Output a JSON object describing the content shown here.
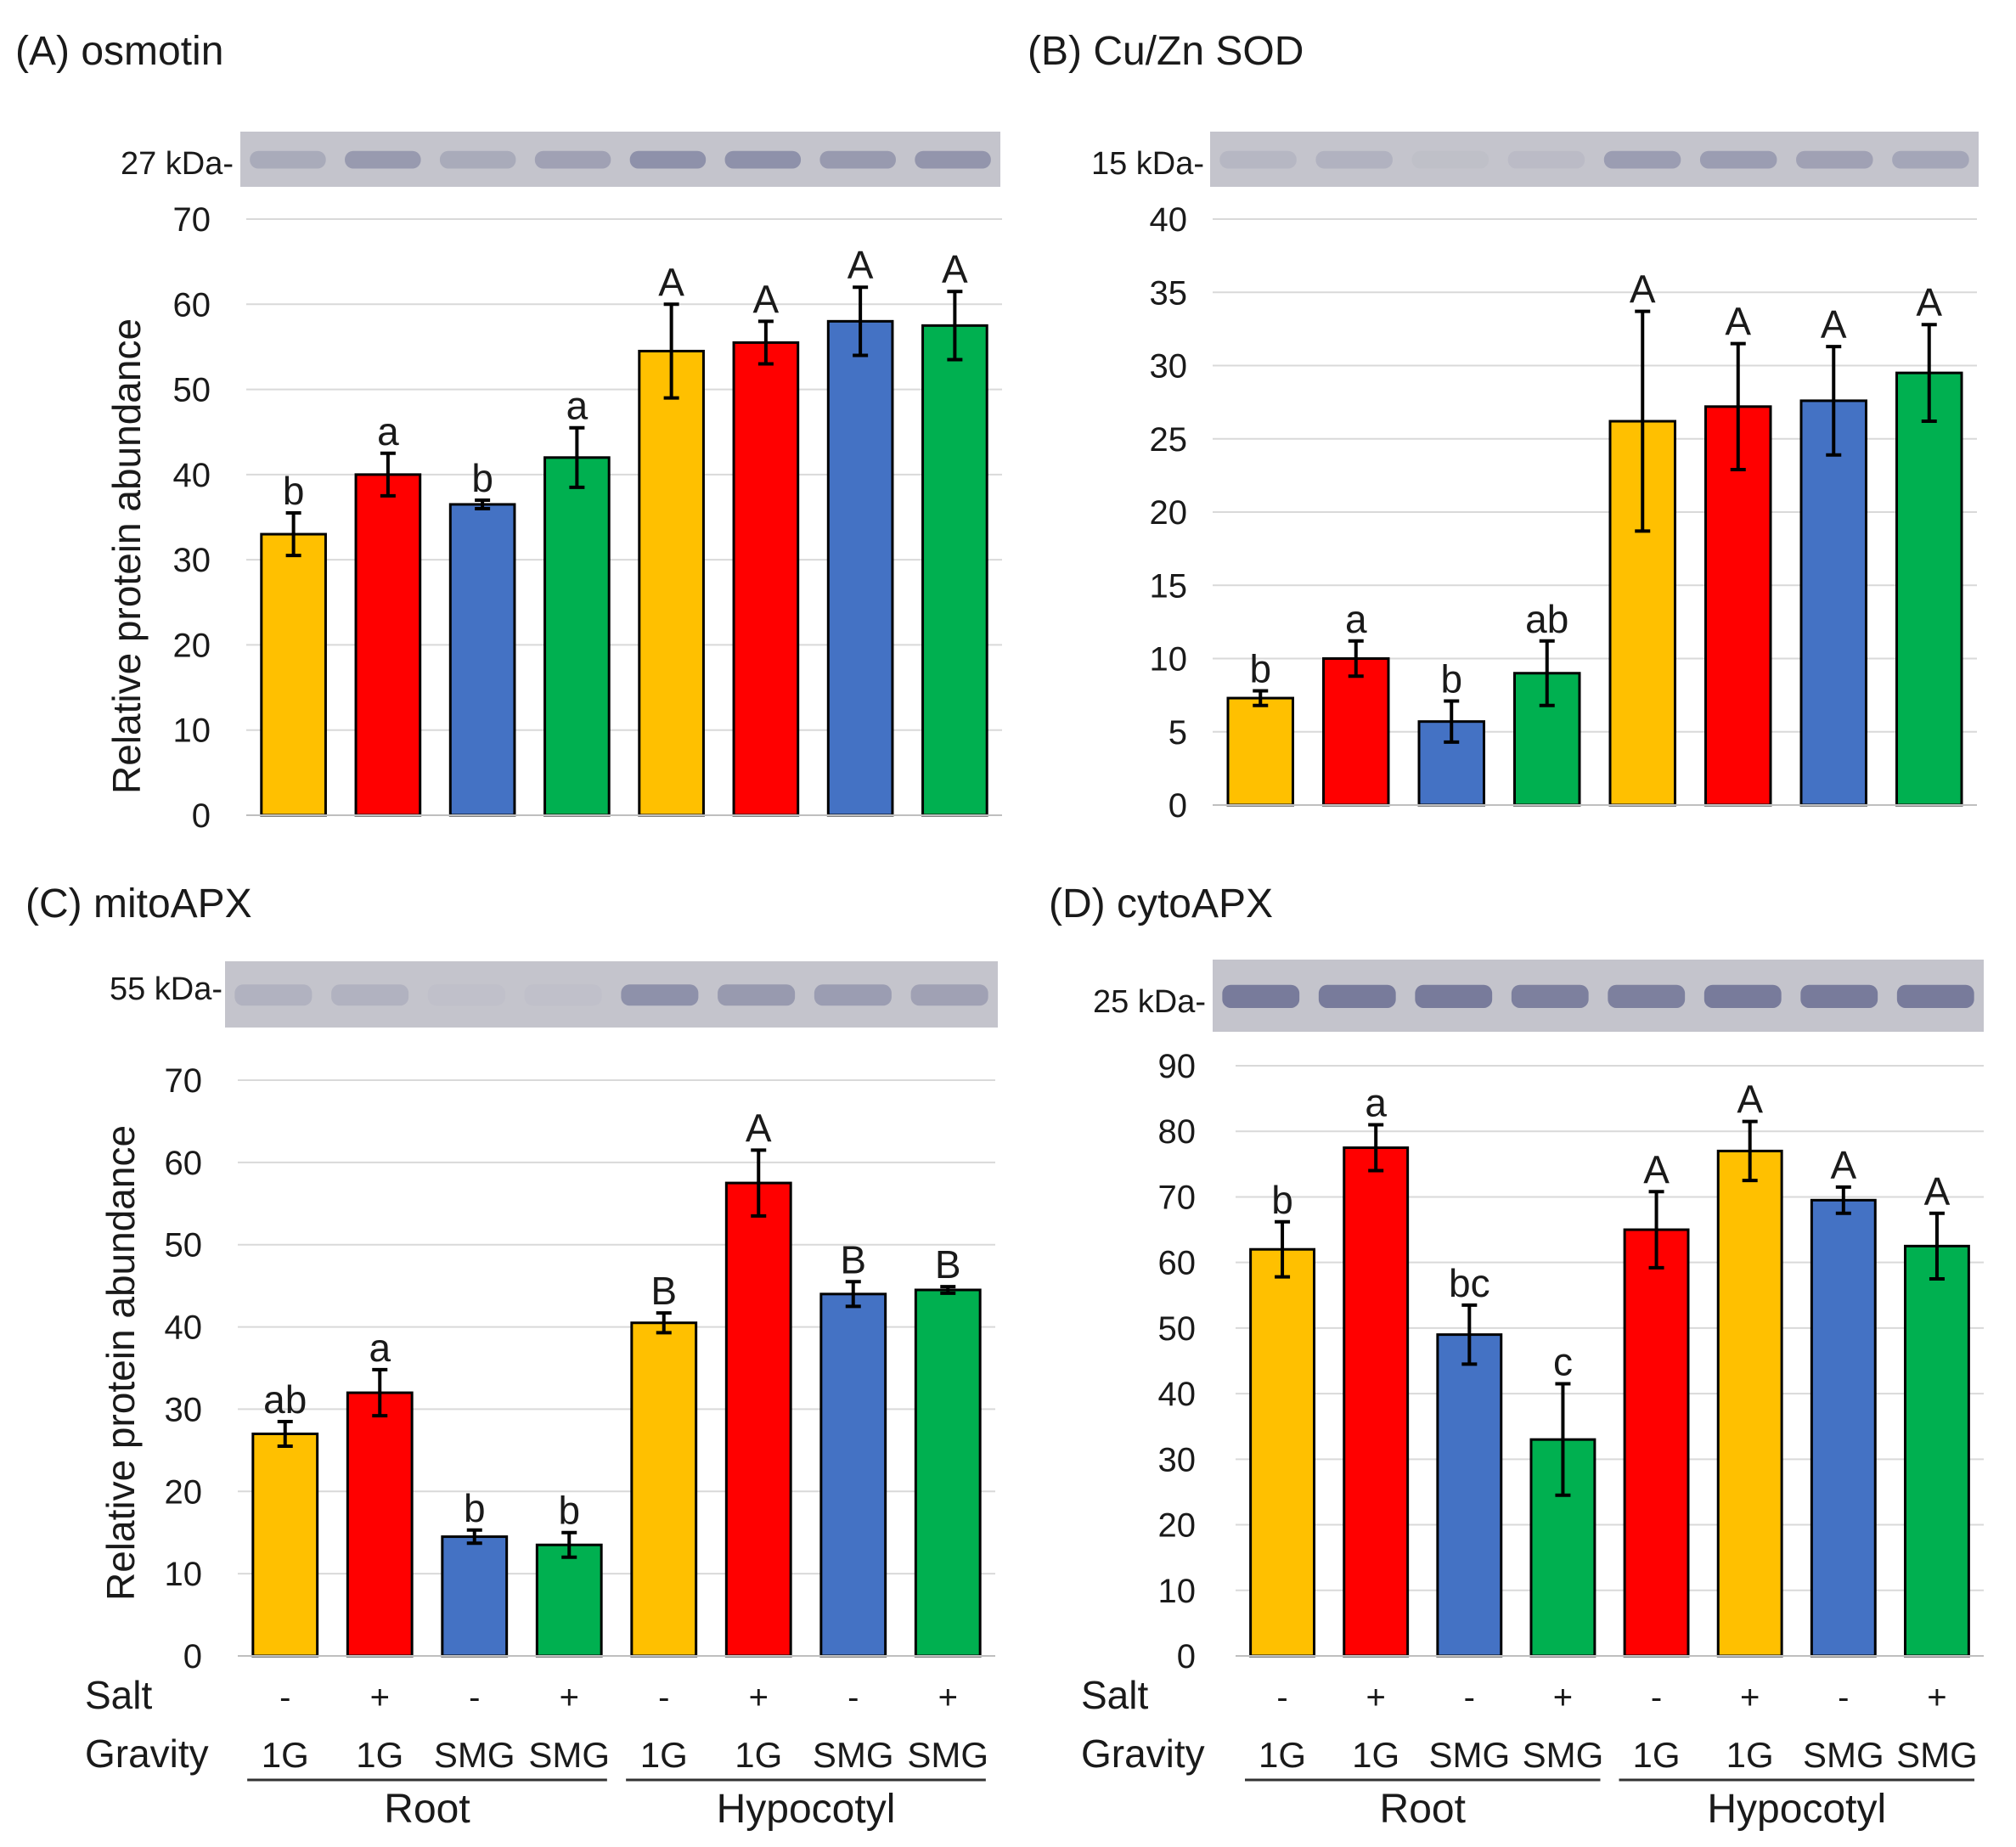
{
  "colors": {
    "yellow": "#FFC000",
    "red": "#FF0000",
    "blue": "#4472C4",
    "green": "#00B050",
    "grid": "#d9d9d9",
    "blot_bg": "#c4c4cc",
    "band": "#6b6f92"
  },
  "x_axis": {
    "salt_label": "Salt",
    "gravity_label": "Gravity",
    "salt": [
      "-",
      "+",
      "-",
      "+",
      "-",
      "+",
      "-",
      "+"
    ],
    "gravity": [
      "1G",
      "1G",
      "SMG",
      "SMG",
      "1G",
      "1G",
      "SMG",
      "SMG"
    ],
    "groups": [
      "Root",
      "Hypocotyl"
    ]
  },
  "chart_data": [
    {
      "type": "bar",
      "title": "(A) osmotin",
      "blot_label": "27 kDa-",
      "ylabel": "Relative protein abundance",
      "ylim": [
        0,
        70
      ],
      "yticks": [
        0,
        10,
        20,
        30,
        40,
        50,
        60,
        70
      ],
      "values": [
        33,
        40,
        36.5,
        42,
        54.5,
        55.5,
        58,
        57.5
      ],
      "errors": [
        2.5,
        2.5,
        0.5,
        3.5,
        5.5,
        2.5,
        4,
        4
      ],
      "letters": [
        "b",
        "a",
        "b",
        "a",
        "A",
        "A",
        "A",
        "A"
      ],
      "colors": [
        "yellow",
        "red",
        "blue",
        "green",
        "yellow",
        "red",
        "blue",
        "green"
      ],
      "band_intensity": [
        0.3,
        0.5,
        0.3,
        0.4,
        0.6,
        0.6,
        0.5,
        0.55
      ]
    },
    {
      "type": "bar",
      "title": "(B) Cu/Zn SOD",
      "blot_label": "15 kDa-",
      "ylabel": "",
      "ylim": [
        0,
        40
      ],
      "yticks": [
        0,
        5,
        10,
        15,
        20,
        25,
        30,
        35,
        40
      ],
      "values": [
        7.3,
        10,
        5.7,
        9,
        26.2,
        27.2,
        27.6,
        29.5
      ],
      "errors": [
        0.5,
        1.2,
        1.4,
        2.2,
        7.5,
        4.3,
        3.7,
        3.3
      ],
      "letters": [
        "b",
        "a",
        "b",
        "ab",
        "A",
        "A",
        "A",
        "A"
      ],
      "colors": [
        "yellow",
        "red",
        "blue",
        "green",
        "yellow",
        "red",
        "blue",
        "green"
      ],
      "band_intensity": [
        0.15,
        0.2,
        0.05,
        0.1,
        0.45,
        0.45,
        0.4,
        0.35
      ]
    },
    {
      "type": "bar",
      "title": "(C) mitoAPX",
      "blot_label": "55 kDa-",
      "ylabel": "Relative protein abundance",
      "ylim": [
        0,
        70
      ],
      "yticks": [
        0,
        10,
        20,
        30,
        40,
        50,
        60,
        70
      ],
      "values": [
        27,
        32,
        14.5,
        13.5,
        40.5,
        57.5,
        44,
        44.5
      ],
      "errors": [
        1.5,
        2.8,
        0.8,
        1.5,
        1.2,
        4,
        1.5,
        0.4
      ],
      "letters": [
        "ab",
        "a",
        "b",
        "b",
        "B",
        "A",
        "B",
        "B"
      ],
      "colors": [
        "yellow",
        "red",
        "blue",
        "green",
        "yellow",
        "red",
        "blue",
        "green"
      ],
      "band_intensity": [
        0.2,
        0.2,
        0.03,
        0.03,
        0.6,
        0.5,
        0.45,
        0.4
      ]
    },
    {
      "type": "bar",
      "title": "(D) cytoAPX",
      "blot_label": "25 kDa-",
      "ylabel": "",
      "ylim": [
        0,
        90
      ],
      "yticks": [
        0,
        10,
        20,
        30,
        40,
        50,
        60,
        70,
        80,
        90
      ],
      "values": [
        62,
        77.5,
        49,
        33,
        65,
        77,
        69.5,
        62.5
      ],
      "errors": [
        4.2,
        3.5,
        4.5,
        8.5,
        5.8,
        4.5,
        2,
        5
      ],
      "letters": [
        "b",
        "a",
        "bc",
        "c",
        "A",
        "A",
        "A",
        "A"
      ],
      "colors": [
        "yellow",
        "red",
        "blue",
        "green",
        "red",
        "yellow",
        "blue",
        "green"
      ],
      "band_intensity": [
        0.85,
        0.85,
        0.85,
        0.8,
        0.8,
        0.85,
        0.85,
        0.85
      ]
    }
  ]
}
